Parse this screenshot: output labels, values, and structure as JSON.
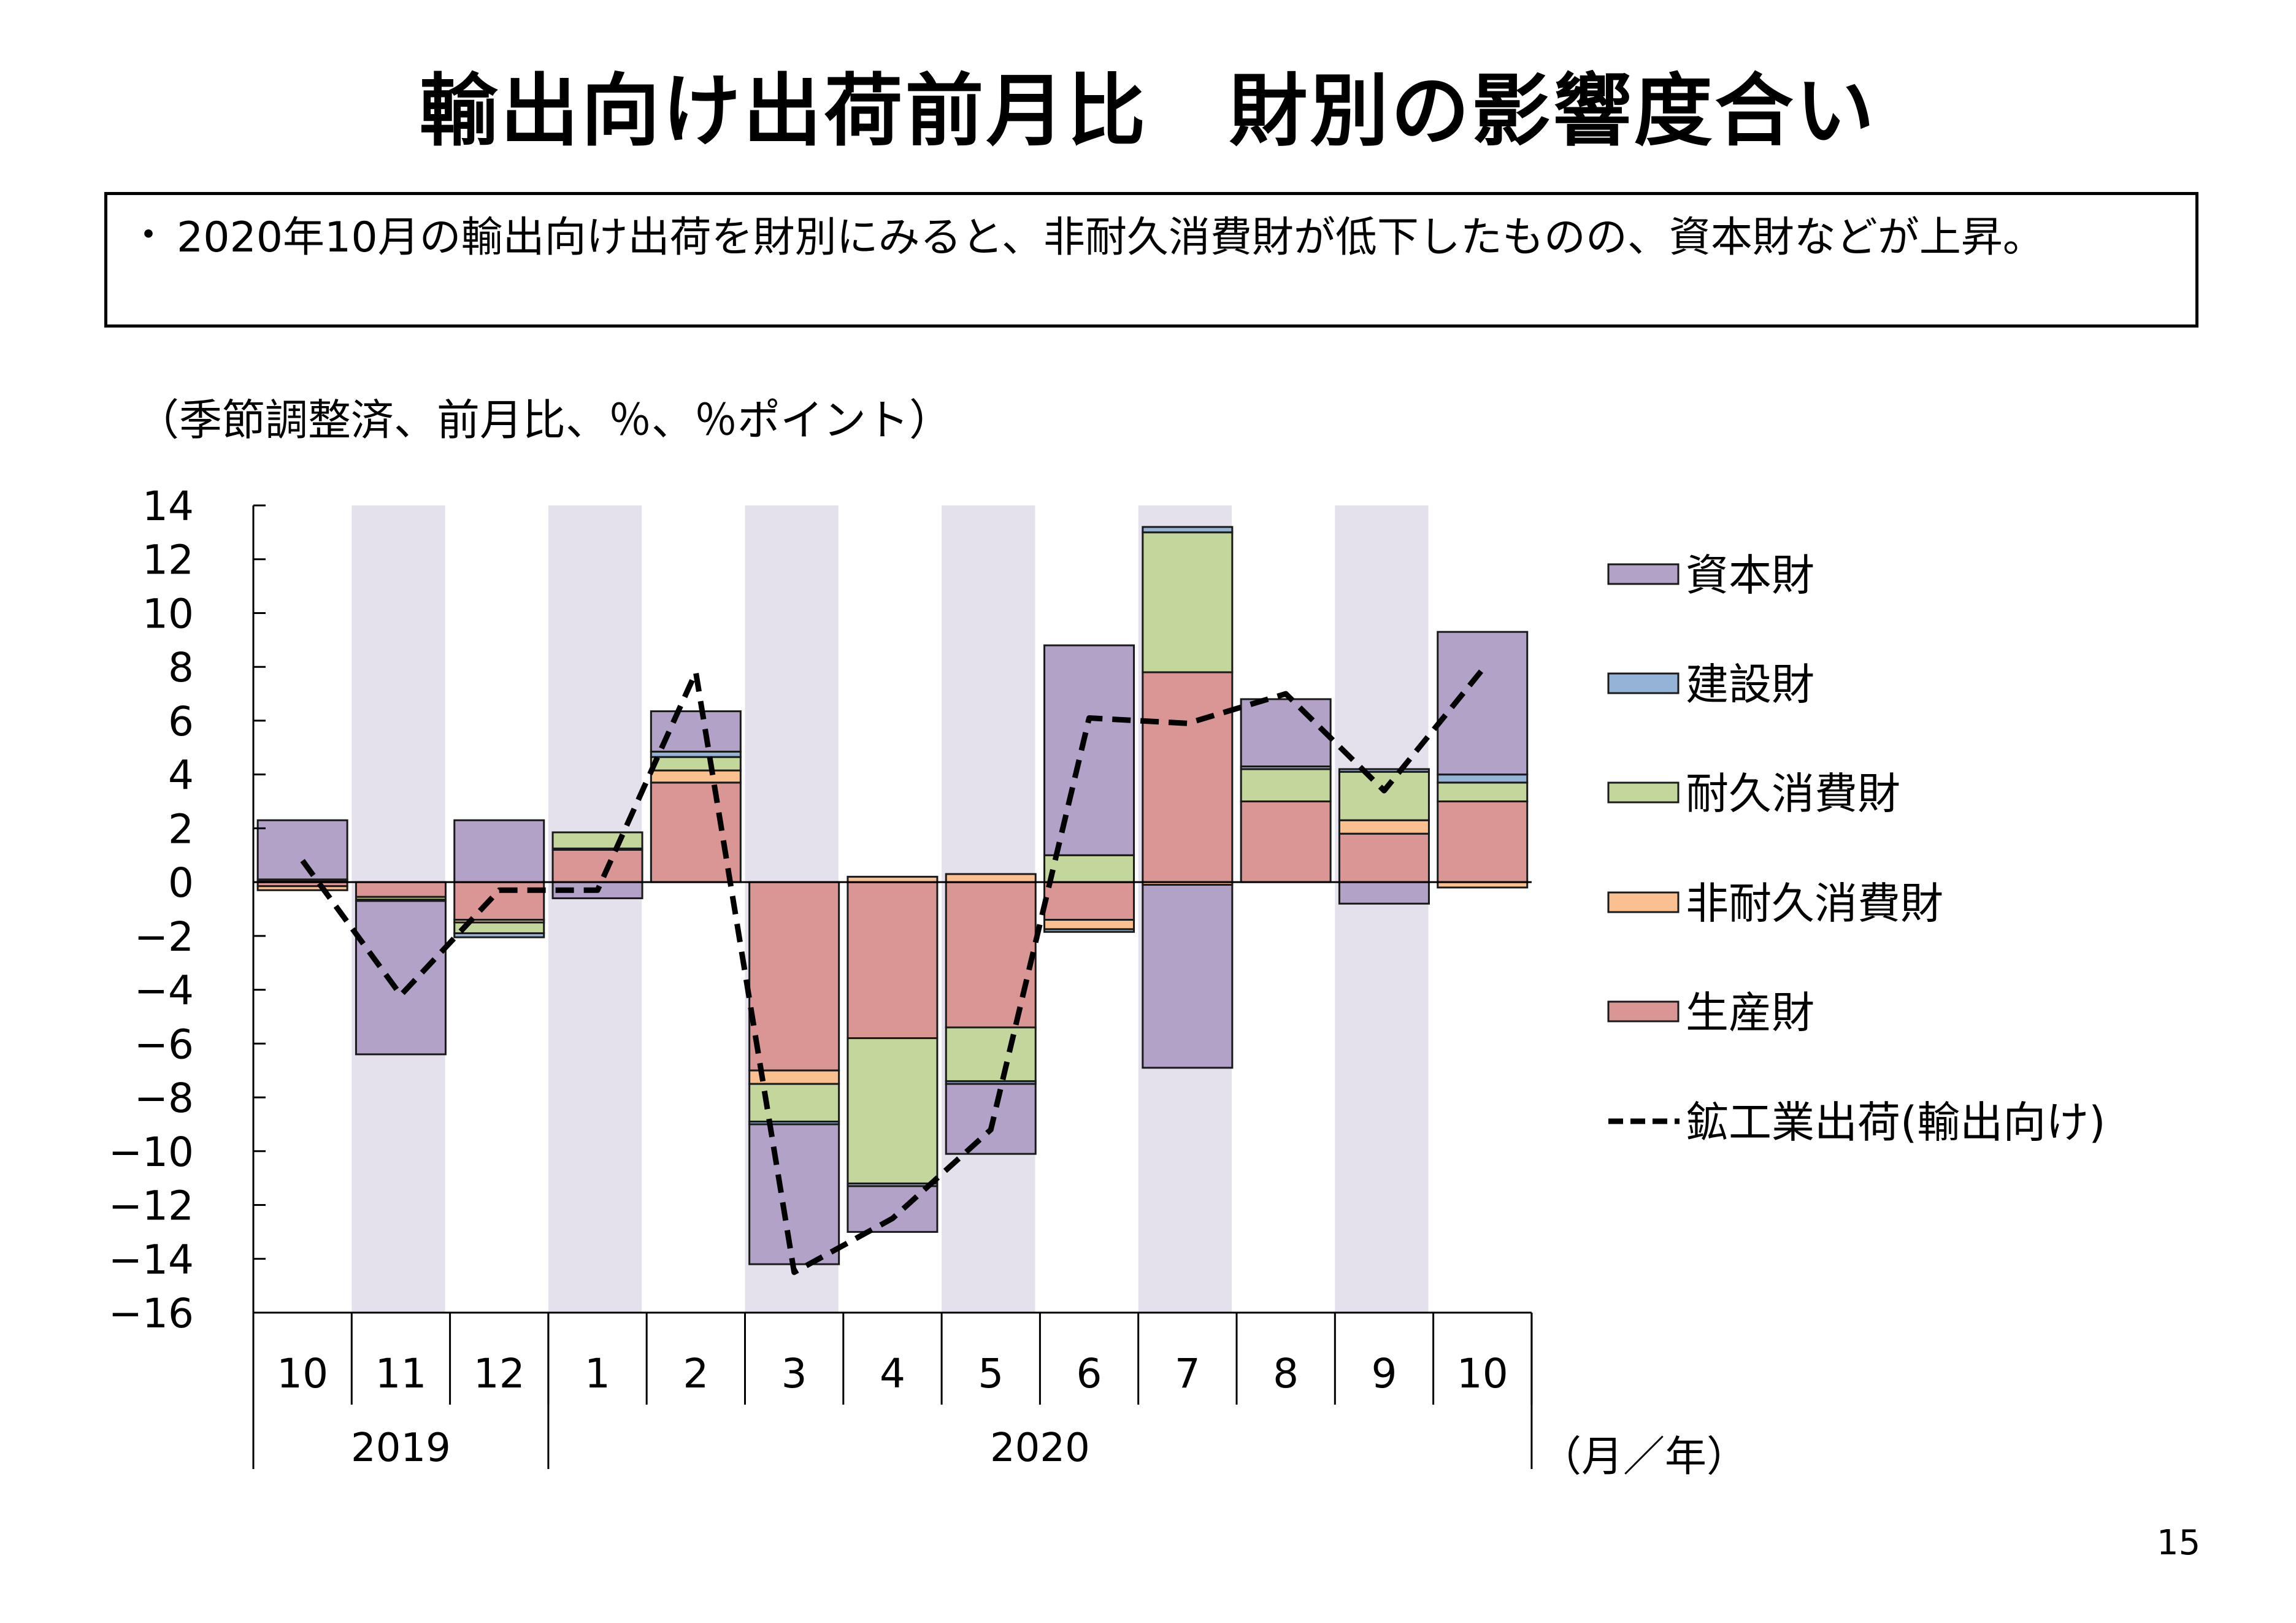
{
  "title": "輸出向け出荷前月比　財別の影響度合い",
  "summary": {
    "bullet": "・",
    "text": "2020年10月の輸出向け出荷を財別にみると、非耐久消費財が低下したものの、資本財などが上昇。"
  },
  "unit_note": "（季節調整済、前月比、％、％ポイント）",
  "page_number": "15",
  "chart_data": {
    "type": "bar",
    "stacked": true,
    "categories": [
      "10",
      "11",
      "12",
      "1",
      "2",
      "3",
      "4",
      "5",
      "6",
      "7",
      "8",
      "9",
      "10"
    ],
    "year_groups": [
      {
        "label": "2019",
        "count": 3
      },
      {
        "label": "2020",
        "count": 10
      }
    ],
    "x_unit_label": "（月／年）",
    "ylim": [
      -16,
      14
    ],
    "yticks": [
      14,
      12,
      10,
      8,
      6,
      4,
      2,
      0,
      -2,
      -4,
      -6,
      -8,
      -10,
      -12,
      -14,
      -16
    ],
    "tick_labels": [
      "14",
      "12",
      "10",
      "8",
      "6",
      "4",
      "2",
      "0",
      "−2",
      "−4",
      "−6",
      "−8",
      "−10",
      "−12",
      "−14",
      "−16"
    ],
    "shaded_bands": true,
    "band_color": "#e4e0ec",
    "series": [
      {
        "name": "生産財",
        "color": "#d99694",
        "values": [
          -0.15,
          -0.55,
          -1.4,
          1.2,
          3.7,
          -7.0,
          -5.8,
          -5.4,
          -1.4,
          7.8,
          3.0,
          1.8,
          3.0
        ]
      },
      {
        "name": "非耐久消費財",
        "color": "#fac090",
        "values": [
          -0.15,
          0,
          -0.1,
          0.05,
          0.45,
          -0.5,
          0.2,
          0.3,
          -0.35,
          -0.1,
          0,
          0.5,
          -0.2
        ]
      },
      {
        "name": "耐久消費財",
        "color": "#c3d69b",
        "values": [
          0.05,
          -0.1,
          -0.4,
          0.6,
          0.5,
          -1.4,
          -5.4,
          -2.0,
          1.0,
          5.2,
          1.2,
          1.8,
          0.7
        ]
      },
      {
        "name": "建設財",
        "color": "#95b3d7",
        "values": [
          0.05,
          -0.05,
          -0.15,
          0,
          0.2,
          -0.1,
          -0.1,
          -0.1,
          -0.1,
          0.2,
          0.1,
          0.1,
          0.3
        ]
      },
      {
        "name": "資本財",
        "color": "#b2a2c7",
        "values": [
          2.2,
          -5.7,
          2.3,
          -0.6,
          1.5,
          -5.2,
          -1.7,
          -2.6,
          7.8,
          -6.8,
          2.5,
          -0.8,
          5.3
        ]
      }
    ],
    "line_series": {
      "name": "鉱工業出荷（輸出向け）",
      "values": [
        0.8,
        -4.2,
        -0.3,
        -0.3,
        7.8,
        -14.5,
        -12.5,
        -9.2,
        6.1,
        5.9,
        7.0,
        3.4,
        7.9
      ],
      "color": "#000000",
      "style": "dashed"
    },
    "legend": {
      "position": "right",
      "items": [
        "資本財",
        "建設財",
        "耐久消費財",
        "非耐久消費財",
        "生産財",
        "鉱工業出荷(輸出向け)"
      ]
    }
  }
}
